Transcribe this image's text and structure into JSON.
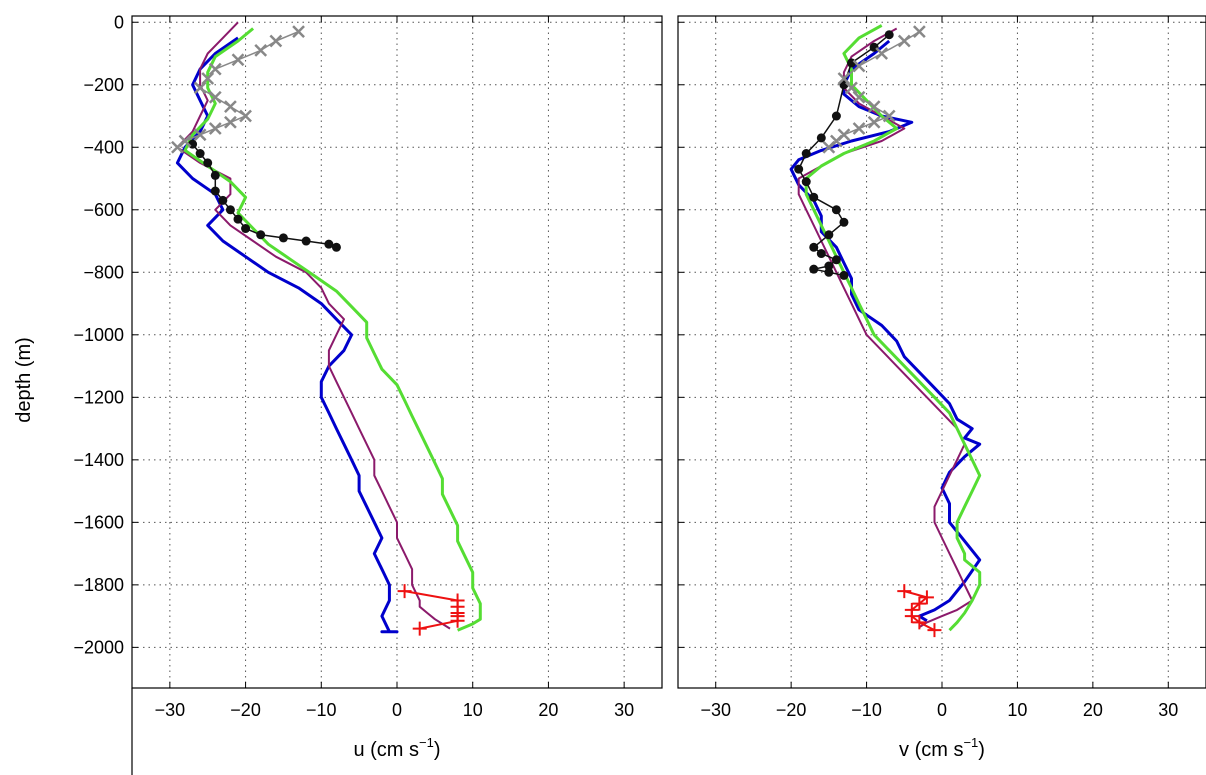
{
  "chart_data": [
    {
      "type": "line",
      "panel": "left",
      "xlabel": "u (cm s",
      "xlabel_sup": "−1",
      "xlabel_close": ")",
      "ylabel": "depth (m)",
      "xlim": [
        -35,
        35
      ],
      "ylim": [
        -2130,
        20
      ],
      "grid": true,
      "x_ticks": [
        -30,
        -20,
        -10,
        0,
        10,
        20,
        30
      ],
      "x_tick_labels": [
        "−30",
        "−20",
        "−10",
        "0",
        "10",
        "20",
        "30"
      ],
      "y_ticks": [
        0,
        -200,
        -400,
        -600,
        -800,
        -1000,
        -1200,
        -1400,
        -1600,
        -1800,
        -2000
      ],
      "y_tick_labels": [
        "0",
        "−200",
        "−400",
        "−600",
        "−800",
        "−1000",
        "−1200",
        "−1400",
        "−1600",
        "−1800",
        "−2000"
      ],
      "series": [
        {
          "color": "#0000cc",
          "width": 3,
          "marker": "none",
          "x": [
            -21,
            -24,
            -26,
            -27,
            -26,
            -25,
            -26,
            -28,
            -29,
            -27,
            -24,
            -23,
            -25,
            -23,
            -20,
            -17,
            -13,
            -10,
            -8,
            -6,
            -7,
            -9,
            -10,
            -10,
            -9,
            -8,
            -7,
            -6,
            -5,
            -5,
            -4,
            -3,
            -2,
            -3,
            -2,
            -1,
            -1,
            -2,
            -1,
            0,
            -1,
            -2,
            -1,
            -1,
            0,
            0,
            0,
            0,
            0
          ],
          "y": [
            -50,
            -100,
            -150,
            -200,
            -250,
            -300,
            -350,
            -400,
            -450,
            -500,
            -550,
            -600,
            -650,
            -700,
            -750,
            -800,
            -850,
            -900,
            -950,
            -1000,
            -1050,
            -1100,
            -1150,
            -1200,
            -1250,
            -1300,
            -1350,
            -1400,
            -1450,
            -1500,
            -1550,
            -1600,
            -1650,
            -1700,
            -1750,
            -1800,
            -1850,
            -1900,
            -1950,
            -1950,
            -1950,
            -1950,
            -1950,
            -1950,
            -1950,
            -1950,
            -1950,
            -1950,
            -1950
          ]
        },
        {
          "color": "#8b1a6b",
          "width": 2,
          "marker": "none",
          "x": [
            -21,
            -23,
            -25,
            -26,
            -26,
            -25,
            -26,
            -27,
            -29,
            -26,
            -22,
            -22,
            -24,
            -22,
            -19,
            -16,
            -12,
            -10,
            -9,
            -7,
            -8,
            -9,
            -9,
            -8,
            -7,
            -6,
            -5,
            -4,
            -3,
            -3,
            -2,
            -1,
            0,
            0,
            1,
            2,
            2,
            3,
            3,
            4,
            5,
            6,
            7
          ],
          "y": [
            0,
            -50,
            -100,
            -150,
            -200,
            -250,
            -300,
            -350,
            -400,
            -450,
            -500,
            -550,
            -600,
            -650,
            -700,
            -750,
            -800,
            -850,
            -900,
            -950,
            -1000,
            -1050,
            -1100,
            -1150,
            -1200,
            -1250,
            -1300,
            -1350,
            -1400,
            -1450,
            -1500,
            -1550,
            -1600,
            -1650,
            -1700,
            -1750,
            -1800,
            -1850,
            -1870,
            -1890,
            -1910,
            -1925,
            -1940
          ]
        },
        {
          "color": "#55dd33",
          "width": 3,
          "marker": "none",
          "x": [
            -19,
            -21,
            -24,
            -25,
            -25,
            -24,
            -25,
            -27,
            -28,
            -25,
            -22,
            -20,
            -21,
            -19,
            -17,
            -14,
            -11,
            -8,
            -6,
            -4,
            -4,
            -3,
            -2,
            0,
            1,
            2,
            3,
            4,
            5,
            6,
            6,
            7,
            8,
            8,
            9,
            10,
            10,
            11,
            11,
            10,
            9,
            8
          ],
          "y": [
            -20,
            -60,
            -110,
            -160,
            -210,
            -260,
            -310,
            -360,
            -410,
            -460,
            -510,
            -560,
            -610,
            -660,
            -710,
            -760,
            -810,
            -860,
            -910,
            -960,
            -1010,
            -1060,
            -1110,
            -1160,
            -1210,
            -1260,
            -1310,
            -1360,
            -1410,
            -1460,
            -1510,
            -1560,
            -1610,
            -1660,
            -1710,
            -1760,
            -1810,
            -1860,
            -1910,
            -1925,
            -1935,
            -1945
          ]
        },
        {
          "color": "#111111",
          "width": 1.5,
          "marker": "dot",
          "x": [
            -27,
            -26,
            -25,
            -24,
            -24,
            -23,
            -22,
            -21,
            -20,
            -18,
            -15,
            -12,
            -9,
            -8
          ],
          "y": [
            -390,
            -420,
            -450,
            -490,
            -540,
            -570,
            -600,
            -630,
            -660,
            -680,
            -690,
            -700,
            -710,
            -720
          ]
        },
        {
          "color": "#888888",
          "width": 1.5,
          "marker": "x",
          "x": [
            -13,
            -16,
            -18,
            -21,
            -24,
            -25,
            -26,
            -24,
            -22,
            -20,
            -22,
            -24,
            -26,
            -28,
            -29
          ],
          "y": [
            -30,
            -60,
            -90,
            -120,
            -150,
            -180,
            -210,
            -240,
            -270,
            -300,
            -320,
            -340,
            -360,
            -380,
            -400
          ]
        },
        {
          "color": "#ee1111",
          "width": 2,
          "marker": "plus",
          "x": [
            1,
            8,
            8,
            8,
            8,
            8,
            3
          ],
          "y": [
            -1820,
            -1850,
            -1870,
            -1890,
            -1900,
            -1915,
            -1940
          ]
        }
      ]
    },
    {
      "type": "line",
      "panel": "right",
      "xlabel": "v (cm s",
      "xlabel_sup": "−1",
      "xlabel_close": ")",
      "xlim": [
        -35,
        35
      ],
      "ylim": [
        -2130,
        20
      ],
      "grid": true,
      "x_ticks": [
        -30,
        -20,
        -10,
        0,
        10,
        20,
        30
      ],
      "x_tick_labels": [
        "−30",
        "−20",
        "−10",
        "0",
        "10",
        "20",
        "30"
      ],
      "series": [
        {
          "color": "#0000cc",
          "width": 3,
          "marker": "none",
          "x": [
            -7,
            -9,
            -12,
            -13,
            -13,
            -11,
            -8,
            -4,
            -7,
            -12,
            -16,
            -19,
            -20,
            -19,
            -17,
            -16,
            -16,
            -14,
            -13,
            -12,
            -12,
            -11,
            -8,
            -6,
            -5,
            -3,
            -1,
            1,
            2,
            4,
            3,
            5,
            3,
            1,
            0,
            1,
            1,
            3,
            5,
            3,
            1,
            -1,
            -3,
            -2
          ],
          "y": [
            -60,
            -100,
            -150,
            -200,
            -230,
            -270,
            -300,
            -320,
            -350,
            -380,
            -410,
            -440,
            -470,
            -520,
            -570,
            -620,
            -670,
            -720,
            -770,
            -820,
            -870,
            -920,
            -970,
            -1020,
            -1070,
            -1120,
            -1170,
            -1220,
            -1270,
            -1300,
            -1330,
            -1350,
            -1390,
            -1440,
            -1490,
            -1540,
            -1600,
            -1660,
            -1720,
            -1790,
            -1850,
            -1880,
            -1900,
            -1915
          ]
        },
        {
          "color": "#8b1a6b",
          "width": 2,
          "marker": "none",
          "x": [
            -6,
            -9,
            -12,
            -13,
            -13,
            -11,
            -8,
            -5,
            -8,
            -13,
            -16,
            -19,
            -19,
            -18,
            -17,
            -16,
            -15,
            -14,
            -13,
            -12,
            -11,
            -10,
            -8,
            -6,
            -4,
            -2,
            0,
            2,
            3,
            2,
            1,
            0,
            -1,
            -1,
            0,
            1,
            2,
            3,
            4,
            2,
            0,
            -2,
            -3
          ],
          "y": [
            -20,
            -60,
            -110,
            -160,
            -210,
            -260,
            -300,
            -340,
            -380,
            -420,
            -460,
            -500,
            -550,
            -600,
            -650,
            -700,
            -750,
            -800,
            -850,
            -900,
            -950,
            -1000,
            -1050,
            -1100,
            -1150,
            -1200,
            -1250,
            -1300,
            -1350,
            -1400,
            -1450,
            -1500,
            -1550,
            -1600,
            -1650,
            -1700,
            -1750,
            -1800,
            -1850,
            -1880,
            -1900,
            -1920,
            -1935
          ]
        },
        {
          "color": "#55dd33",
          "width": 3,
          "marker": "none",
          "x": [
            -8,
            -11,
            -13,
            -12,
            -12,
            -10,
            -8,
            -6,
            -9,
            -13,
            -16,
            -18,
            -18,
            -17,
            -16,
            -15,
            -14,
            -13,
            -12,
            -11,
            -10,
            -9,
            -7,
            -5,
            -3,
            -1,
            1,
            2,
            3,
            4,
            5,
            4,
            3,
            2,
            2,
            3,
            3,
            4,
            5,
            5,
            4,
            3,
            2,
            1
          ],
          "y": [
            -10,
            -50,
            -100,
            -150,
            -200,
            -250,
            -300,
            -340,
            -380,
            -420,
            -460,
            -500,
            -550,
            -600,
            -650,
            -700,
            -750,
            -800,
            -850,
            -900,
            -950,
            -1000,
            -1050,
            -1100,
            -1150,
            -1200,
            -1250,
            -1300,
            -1350,
            -1400,
            -1450,
            -1500,
            -1550,
            -1600,
            -1650,
            -1700,
            -1720,
            -1740,
            -1760,
            -1800,
            -1850,
            -1890,
            -1920,
            -1945
          ]
        },
        {
          "color": "#111111",
          "width": 1.5,
          "marker": "dot",
          "x": [
            -7,
            -9,
            -12,
            -13,
            -14,
            -16,
            -18,
            -19,
            -18,
            -17,
            -14,
            -13,
            -15,
            -17,
            -16,
            -14,
            -15,
            -17,
            -15,
            -13
          ],
          "y": [
            -40,
            -80,
            -130,
            -200,
            -300,
            -370,
            -420,
            -470,
            -510,
            -560,
            -600,
            -640,
            -680,
            -720,
            -740,
            -760,
            -780,
            -790,
            -800,
            -810
          ]
        },
        {
          "color": "#888888",
          "width": 1.5,
          "marker": "x",
          "x": [
            -3,
            -5,
            -8,
            -11,
            -13,
            -12,
            -11,
            -9,
            -7,
            -9,
            -11,
            -13,
            -14,
            -15
          ],
          "y": [
            -30,
            -60,
            -100,
            -140,
            -180,
            -210,
            -240,
            -270,
            -300,
            -320,
            -340,
            -360,
            -380,
            -400
          ]
        },
        {
          "color": "#ee1111",
          "width": 2,
          "marker": "plus",
          "x": [
            -5,
            -2,
            -3,
            -4,
            -4,
            -3,
            -1
          ],
          "y": [
            -1820,
            -1840,
            -1860,
            -1880,
            -1900,
            -1920,
            -1945
          ]
        }
      ]
    }
  ]
}
